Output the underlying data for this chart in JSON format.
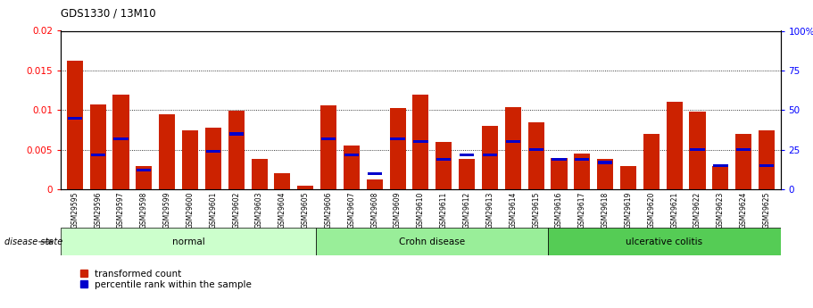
{
  "title": "GDS1330 / 13M10",
  "samples": [
    "GSM29595",
    "GSM29596",
    "GSM29597",
    "GSM29598",
    "GSM29599",
    "GSM29600",
    "GSM29601",
    "GSM29602",
    "GSM29603",
    "GSM29604",
    "GSM29605",
    "GSM29606",
    "GSM29607",
    "GSM29608",
    "GSM29609",
    "GSM29610",
    "GSM29611",
    "GSM29612",
    "GSM29613",
    "GSM29614",
    "GSM29615",
    "GSM29616",
    "GSM29617",
    "GSM29618",
    "GSM29619",
    "GSM29620",
    "GSM29621",
    "GSM29622",
    "GSM29623",
    "GSM29624",
    "GSM29625"
  ],
  "red_values": [
    0.0162,
    0.0107,
    0.012,
    0.003,
    0.0095,
    0.0075,
    0.0078,
    0.0099,
    0.0038,
    0.002,
    0.0005,
    0.0106,
    0.0055,
    0.0013,
    0.0103,
    0.012,
    0.006,
    0.0038,
    0.008,
    0.0104,
    0.0085,
    0.004,
    0.0045,
    0.0038,
    0.003,
    0.007,
    0.011,
    0.0098,
    0.003,
    0.007,
    0.0075
  ],
  "blue_pct": [
    45,
    22,
    32,
    12,
    0,
    0,
    24,
    35,
    0,
    0,
    0,
    32,
    22,
    10,
    32,
    30,
    19,
    22,
    22,
    30,
    25,
    19,
    19,
    17,
    0,
    0,
    0,
    25,
    15,
    25,
    15
  ],
  "groups": [
    {
      "label": "normal",
      "start": 0,
      "end": 11,
      "color": "#ccffcc"
    },
    {
      "label": "Crohn disease",
      "start": 11,
      "end": 21,
      "color": "#99ee99"
    },
    {
      "label": "ulcerative colitis",
      "start": 21,
      "end": 31,
      "color": "#55cc55"
    }
  ],
  "ylim_left": [
    0,
    0.02
  ],
  "ylim_right": [
    0,
    100
  ],
  "yticks_left": [
    0,
    0.005,
    0.01,
    0.015,
    0.02
  ],
  "yticks_right": [
    0,
    25,
    50,
    75,
    100
  ],
  "bar_color_red": "#cc2200",
  "bar_color_blue": "#0000cc",
  "bar_width": 0.7,
  "bg_color": "#ffffff",
  "tick_bg": "#bbbbbb",
  "legend_red": "transformed count",
  "legend_blue": "percentile rank within the sample",
  "disease_state_label": "disease state"
}
